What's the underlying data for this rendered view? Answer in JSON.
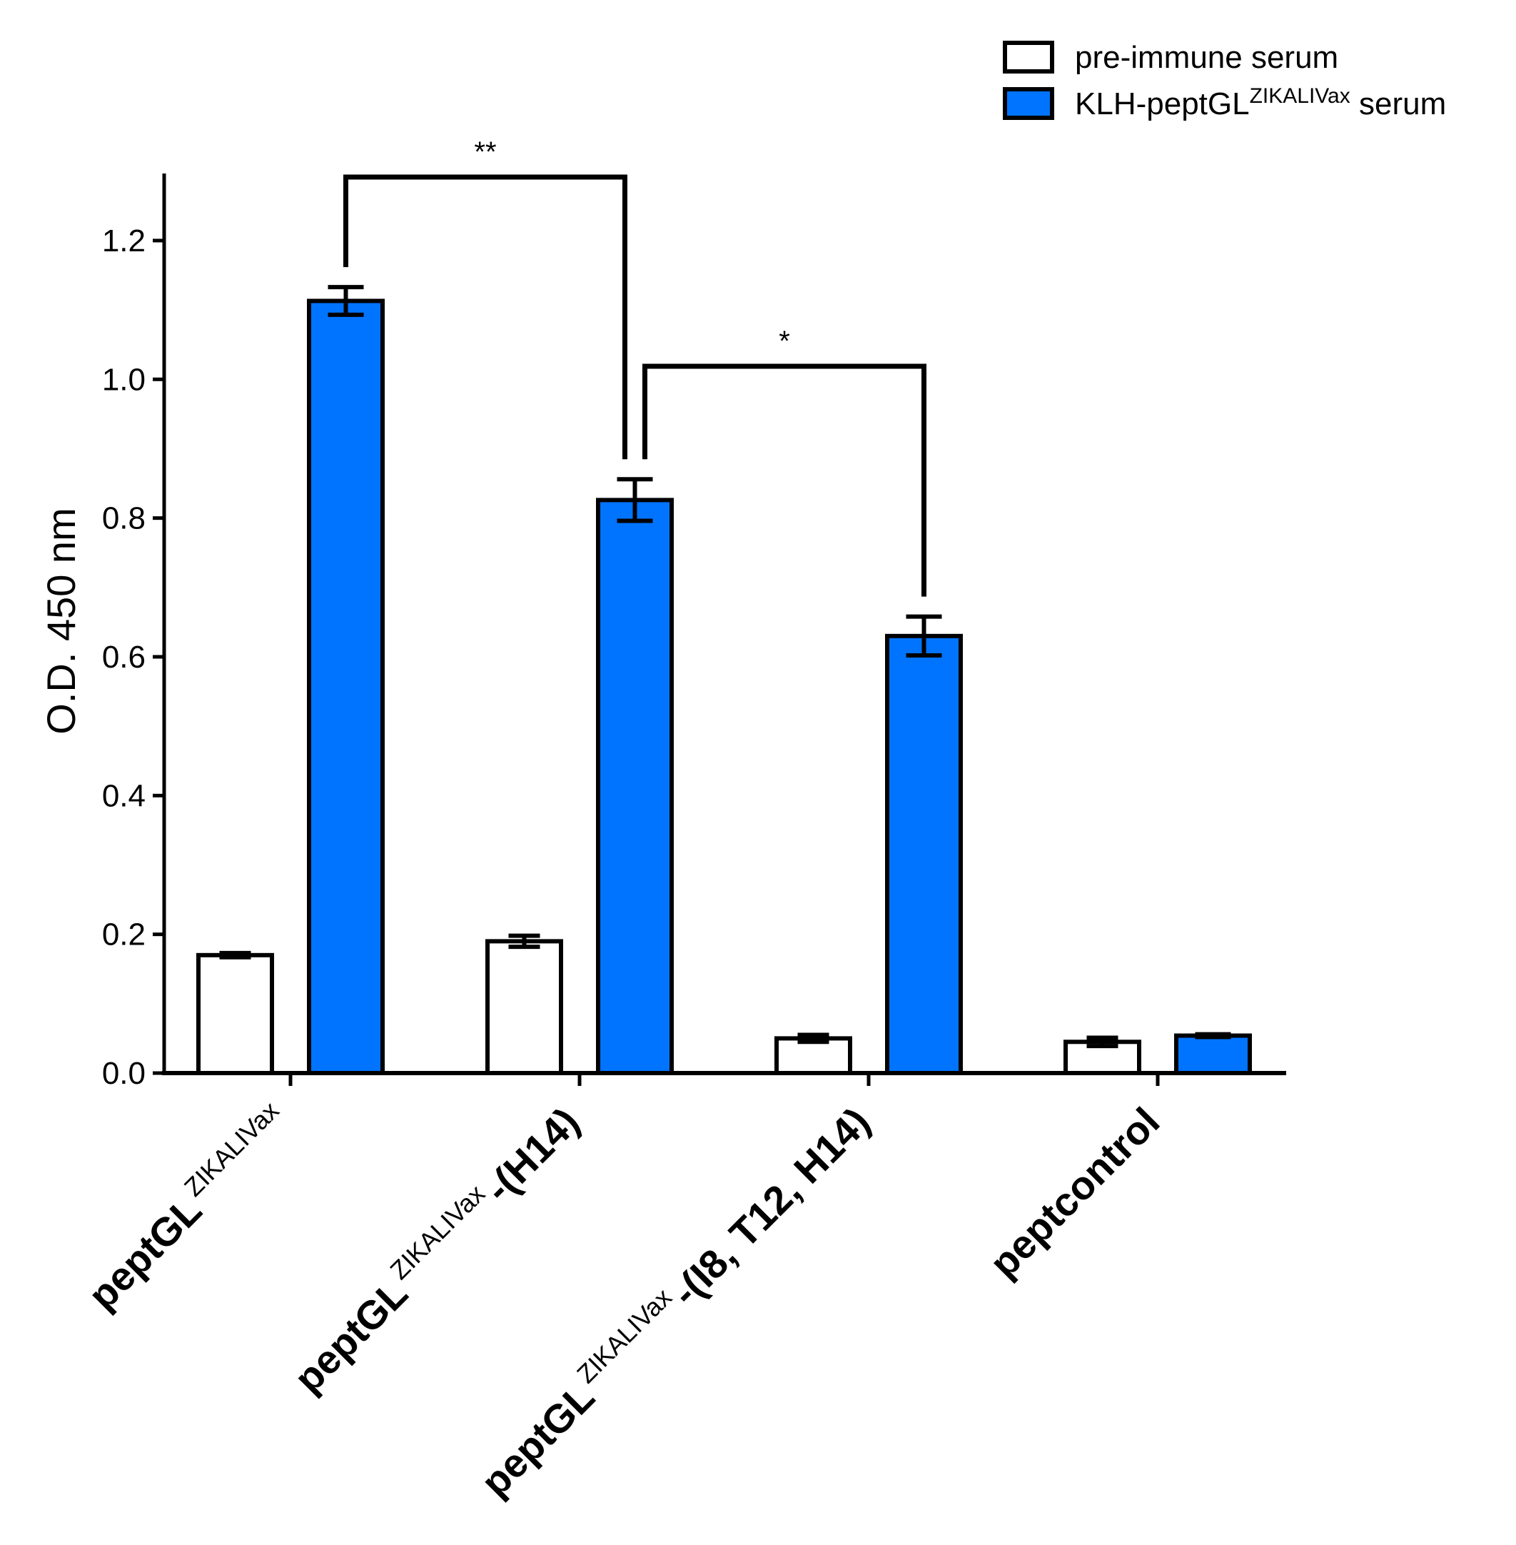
{
  "chart_data": {
    "type": "bar",
    "ylabel": "O.D. 450 nm",
    "xlabel": "",
    "ylim": [
      0,
      1.3
    ],
    "yticks": [
      "0.0",
      "0.2",
      "0.4",
      "0.6",
      "0.8",
      "1.0",
      "1.2"
    ],
    "categories": [
      {
        "main": "peptGL",
        "sup": "ZIKALIVax",
        "suffix": ""
      },
      {
        "main": "peptGL",
        "sup": "ZIKALIVax",
        "suffix": "-(H14)"
      },
      {
        "main": "peptGL",
        "sup": "ZIKALIVax",
        "suffix": "-(I8, T12, H14)"
      },
      {
        "main": "peptcontrol",
        "sup": "",
        "suffix": ""
      }
    ],
    "series": [
      {
        "name": "pre-immune serum",
        "name_parts": {
          "main": "pre-immune serum",
          "sup": "",
          "suffix": ""
        },
        "fill": "#ffffff",
        "values": [
          0.17,
          0.19,
          0.05,
          0.045
        ],
        "errors": [
          0.003,
          0.008,
          0.005,
          0.006
        ]
      },
      {
        "name": "KLH-peptGLZIKALIVax serum",
        "name_parts": {
          "main": "KLH-peptGL",
          "sup": "ZIKALIVax",
          "suffix": " serum"
        },
        "fill": "#0074ff",
        "values": [
          1.113,
          0.826,
          0.63,
          0.054
        ],
        "errors": [
          0.02,
          0.03,
          0.028,
          0.002
        ]
      }
    ],
    "significance": [
      {
        "label": "**",
        "from_group": 0,
        "to_group": 1,
        "series": 1
      },
      {
        "label": "*",
        "from_group": 1,
        "to_group": 2,
        "series": 1
      }
    ],
    "legend_position": "top-right",
    "colors": {
      "axis": "#000000",
      "blue": "#0074ff",
      "white": "#ffffff"
    }
  }
}
